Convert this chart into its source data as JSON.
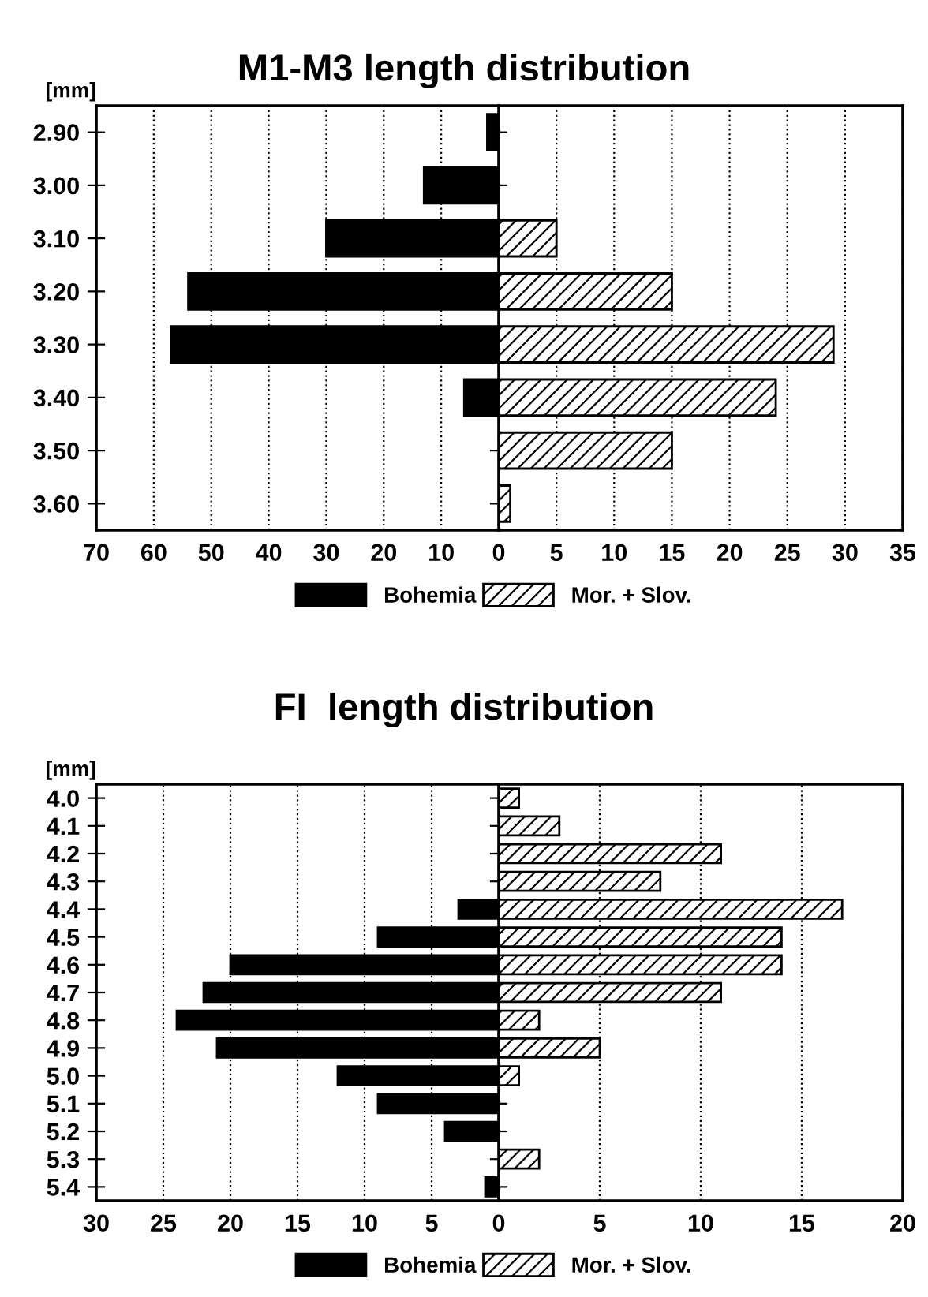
{
  "chart_data": [
    {
      "type": "bar",
      "orientation": "horizontal",
      "title": "M1-M3 length distribution",
      "ylabel": "[mm]",
      "categories": [
        "2.90",
        "3.00",
        "3.10",
        "3.20",
        "3.30",
        "3.40",
        "3.50",
        "3.60"
      ],
      "series": [
        {
          "name": "Bohemia",
          "color": "#000000",
          "values": [
            2,
            13,
            30,
            54,
            57,
            6,
            null,
            null
          ]
        }
      ],
      "xlim": [
        70,
        0
      ],
      "xticks": [
        70,
        60,
        50,
        40,
        30,
        20,
        10,
        {
          "value": 0,
          "label": null
        }
      ],
      "grid": "x",
      "legend": "bottom"
    },
    {
      "type": "bar",
      "orientation": "horizontal",
      "categories": [
        "2.90",
        "3.00",
        "3.10",
        "3.20",
        "3.30",
        "3.40",
        "3.50",
        "3.60"
      ],
      "series": [
        {
          "name": "Mor. + Slov.",
          "color": "#000000",
          "values": [
            null,
            null,
            5,
            15,
            29,
            24,
            15,
            1
          ]
        }
      ],
      "xlim": [
        0,
        35
      ],
      "xticks": [
        0,
        5,
        10,
        15,
        20,
        25,
        30,
        35
      ],
      "grid": "x",
      "legend": "bottom",
      "tick_labels": "x"
    },
    {
      "type": "bar",
      "orientation": "horizontal",
      "title": "FI  length distribution",
      "ylabel": "[mm]",
      "categories": [
        "4.0",
        "4.1",
        "4.2",
        "4.3",
        "4.4",
        "4.5",
        "4.6",
        "4.7",
        "4.8",
        "4.9",
        "5.0",
        "5.1",
        "5.2",
        "5.3",
        "5.4"
      ],
      "series": [
        {
          "name": "Bohemia",
          "color": "#000000",
          "values": [
            null,
            null,
            null,
            null,
            3,
            9,
            20,
            22,
            24,
            21,
            12,
            9,
            4,
            null,
            1
          ]
        }
      ],
      "xlim": [
        30,
        0
      ],
      "xticks": [
        30,
        25,
        20,
        15,
        10,
        5,
        {
          "value": 0,
          "label": null
        }
      ],
      "grid": "x",
      "legend": "bottom"
    },
    {
      "type": "bar",
      "orientation": "horizontal",
      "categories": [
        "4.0",
        "4.1",
        "4.2",
        "4.3",
        "4.4",
        "4.5",
        "4.6",
        "4.7",
        "4.8",
        "4.9",
        "5.0",
        "5.1",
        "5.2",
        "5.3",
        "5.4"
      ],
      "series": [
        {
          "name": "Mor. + Slov.",
          "color": "#000000",
          "values": [
            1,
            3,
            11,
            8,
            17,
            14,
            14,
            11,
            2,
            5,
            1,
            null,
            null,
            2,
            null
          ]
        }
      ],
      "xlim": [
        0,
        20
      ],
      "xticks": [
        0,
        5,
        10,
        15,
        20
      ],
      "grid": "x",
      "legend": "bottom",
      "tick_labels": "x"
    }
  ]
}
